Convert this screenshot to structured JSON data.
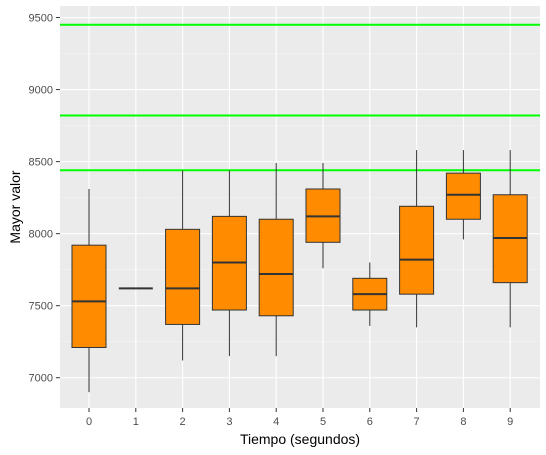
{
  "chart_data": {
    "type": "boxplot",
    "xlabel": "Tiempo (segundos)",
    "ylabel": "Mayor valor",
    "ylim": [
      6790,
      9580
    ],
    "y_ticks": [
      7000,
      7500,
      8000,
      8500,
      9000,
      9500
    ],
    "y_tick_labels": [
      "7000",
      "7500",
      "8000",
      "8500",
      "9000",
      "9500"
    ],
    "categories": [
      "0",
      "1",
      "2",
      "3",
      "4",
      "5",
      "6",
      "7",
      "8",
      "9"
    ],
    "boxes": [
      {
        "x": "0",
        "min": 6900,
        "q1": 7210,
        "median": 7530,
        "q3": 7920,
        "max": 8310
      },
      {
        "x": "1",
        "min": 7620,
        "q1": 7620,
        "median": 7620,
        "q3": 7620,
        "max": 7620
      },
      {
        "x": "2",
        "min": 7120,
        "q1": 7370,
        "median": 7620,
        "q3": 8030,
        "max": 8440
      },
      {
        "x": "3",
        "min": 7150,
        "q1": 7470,
        "median": 7800,
        "q3": 8120,
        "max": 8440
      },
      {
        "x": "4",
        "min": 7150,
        "q1": 7430,
        "median": 7720,
        "q3": 8100,
        "max": 8490
      },
      {
        "x": "5",
        "min": 7760,
        "q1": 7940,
        "median": 8120,
        "q3": 8310,
        "max": 8490
      },
      {
        "x": "6",
        "min": 7360,
        "q1": 7470,
        "median": 7580,
        "q3": 7690,
        "max": 7800
      },
      {
        "x": "7",
        "min": 7350,
        "q1": 7580,
        "median": 7820,
        "q3": 8190,
        "max": 8580
      },
      {
        "x": "8",
        "min": 7960,
        "q1": 8100,
        "median": 8270,
        "q3": 8420,
        "max": 8580
      },
      {
        "x": "9",
        "min": 7350,
        "q1": 7660,
        "median": 7970,
        "q3": 8270,
        "max": 8580
      }
    ],
    "hlines": [
      9450,
      8820,
      8440
    ],
    "grid": true,
    "colors": {
      "box_fill": "#ff8c00",
      "box_stroke": "#333333",
      "hline": "#00ff00",
      "panel_bg": "#ebebeb",
      "grid_major": "#ffffff",
      "grid_minor": "#f5f5f5"
    }
  }
}
